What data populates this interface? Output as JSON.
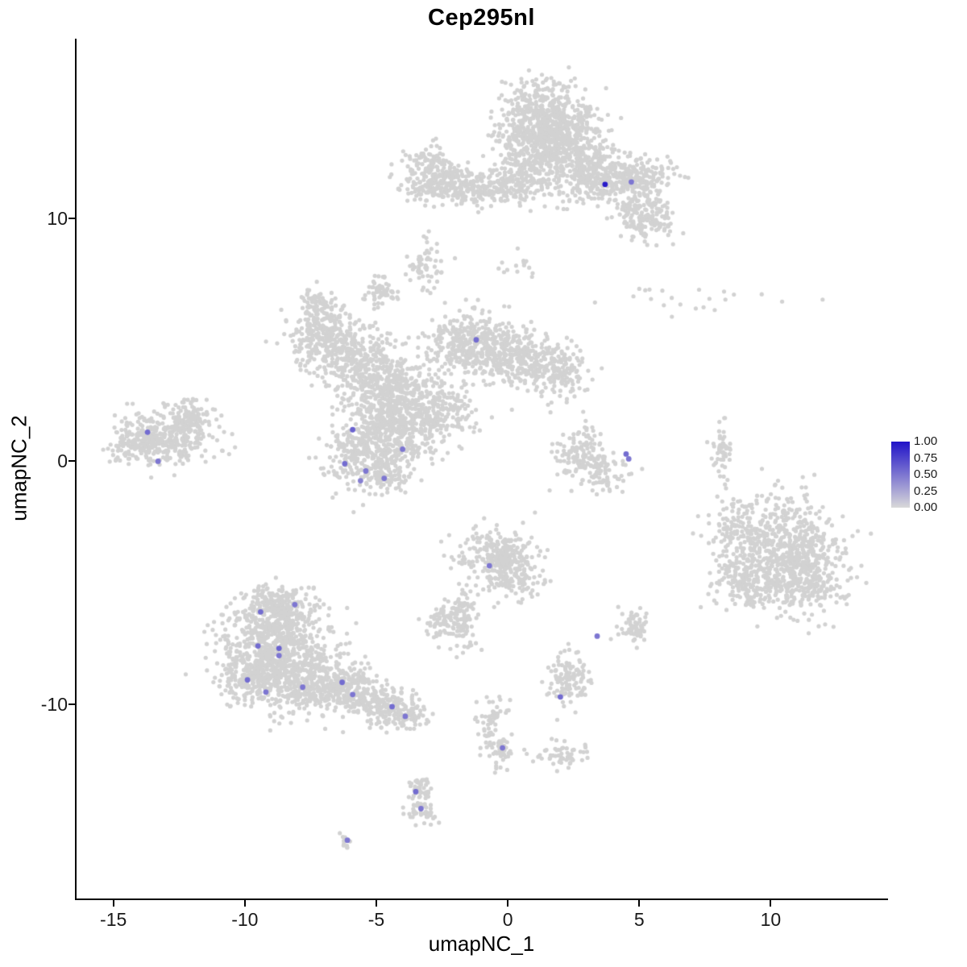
{
  "chart_data": {
    "type": "scatter",
    "title": "Cep295nl",
    "xlabel": "umapNC_1",
    "ylabel": "umapNC_2",
    "xlim": [
      -16.4,
      14.4
    ],
    "ylim": [
      -18.0,
      17.4
    ],
    "x_ticks": [
      -15,
      -10,
      -5,
      0,
      5,
      10
    ],
    "y_ticks": [
      10,
      0,
      -10
    ],
    "grid": false,
    "legend": {
      "position": "right",
      "ticks": [
        "1.00",
        "0.75",
        "0.50",
        "0.25",
        "0.00"
      ]
    },
    "colors": {
      "low": "#d9d9d9",
      "high": "#2012c8",
      "background_point": "#d2d2d2",
      "axis": "#000000"
    },
    "seed": 42,
    "point_radius_px": 2.6,
    "expressing_point_radius_px": 3.4,
    "background_clusters": [
      {
        "cx": 1.3,
        "cy": 14.2,
        "sx": 0.9,
        "sy": 0.7,
        "n": 480
      },
      {
        "cx": 2.2,
        "cy": 12.9,
        "sx": 0.8,
        "sy": 0.8,
        "n": 380
      },
      {
        "cx": 3.2,
        "cy": 11.7,
        "sx": 0.6,
        "sy": 0.55,
        "n": 220
      },
      {
        "cx": 4.8,
        "cy": 11.6,
        "sx": 0.7,
        "sy": 0.5,
        "n": 240
      },
      {
        "cx": 5.2,
        "cy": 10.2,
        "sx": 0.5,
        "sy": 0.55,
        "n": 180
      },
      {
        "cx": 0.6,
        "cy": 12.4,
        "sx": 0.6,
        "sy": 0.7,
        "n": 200
      },
      {
        "cx": -2.2,
        "cy": 11.3,
        "sx": 0.9,
        "sy": 0.35,
        "n": 200
      },
      {
        "cx": -2.9,
        "cy": 12.0,
        "sx": 0.5,
        "sy": 0.45,
        "n": 150
      },
      {
        "cx": -0.4,
        "cy": 11.2,
        "sx": 0.9,
        "sy": 0.4,
        "n": 160
      },
      {
        "cx": -3.2,
        "cy": 8.1,
        "sx": 0.35,
        "sy": 0.45,
        "n": 60
      },
      {
        "cx": 0.6,
        "cy": 8.2,
        "sx": 0.5,
        "sy": 0.4,
        "n": 15
      },
      {
        "cx": -7.0,
        "cy": 5.2,
        "sx": 0.7,
        "sy": 0.65,
        "n": 280
      },
      {
        "cx": -5.8,
        "cy": 4.3,
        "sx": 0.8,
        "sy": 0.6,
        "n": 240
      },
      {
        "cx": -4.6,
        "cy": 2.9,
        "sx": 0.9,
        "sy": 0.85,
        "n": 450
      },
      {
        "cx": -4.2,
        "cy": 1.3,
        "sx": 0.7,
        "sy": 0.8,
        "n": 320
      },
      {
        "cx": -2.6,
        "cy": 2.0,
        "sx": 0.8,
        "sy": 0.6,
        "n": 200
      },
      {
        "cx": -1.4,
        "cy": 4.8,
        "sx": 0.9,
        "sy": 0.65,
        "n": 360
      },
      {
        "cx": 0.4,
        "cy": 4.3,
        "sx": 0.9,
        "sy": 0.6,
        "n": 280
      },
      {
        "cx": 1.9,
        "cy": 3.7,
        "sx": 0.6,
        "sy": 0.5,
        "n": 140
      },
      {
        "cx": -4.8,
        "cy": 7.0,
        "sx": 0.3,
        "sy": 0.3,
        "n": 60
      },
      {
        "cx": -7.3,
        "cy": 6.4,
        "sx": 0.3,
        "sy": 0.4,
        "n": 50
      },
      {
        "cx": -13.0,
        "cy": 1.0,
        "sx": 0.9,
        "sy": 0.55,
        "n": 330
      },
      {
        "cx": -12.1,
        "cy": 1.8,
        "sx": 0.5,
        "sy": 0.4,
        "n": 110
      },
      {
        "cx": -14.2,
        "cy": 0.6,
        "sx": 0.5,
        "sy": 0.4,
        "n": 90
      },
      {
        "cx": -5.5,
        "cy": 0.3,
        "sx": 0.7,
        "sy": 0.7,
        "n": 260
      },
      {
        "cx": -4.6,
        "cy": -0.6,
        "sx": 0.45,
        "sy": 0.35,
        "n": 80
      },
      {
        "cx": 2.8,
        "cy": 0.2,
        "sx": 0.55,
        "sy": 0.6,
        "n": 150
      },
      {
        "cx": 3.7,
        "cy": -0.5,
        "sx": 0.45,
        "sy": 0.4,
        "n": 60
      },
      {
        "cx": 8.1,
        "cy": 0.4,
        "sx": 0.15,
        "sy": 0.6,
        "n": 55
      },
      {
        "cx": 7.3,
        "cy": 6.7,
        "sx": 1.4,
        "sy": 0.35,
        "n": 22
      },
      {
        "cx": 10.3,
        "cy": -3.4,
        "sx": 1.1,
        "sy": 1.0,
        "n": 550
      },
      {
        "cx": 11.2,
        "cy": -4.8,
        "sx": 0.9,
        "sy": 0.75,
        "n": 320
      },
      {
        "cx": 9.1,
        "cy": -5.0,
        "sx": 0.6,
        "sy": 0.55,
        "n": 140
      },
      {
        "cx": 8.5,
        "cy": -3.0,
        "sx": 0.5,
        "sy": 0.8,
        "n": 70
      },
      {
        "cx": -0.4,
        "cy": -3.8,
        "sx": 0.7,
        "sy": 0.6,
        "n": 260
      },
      {
        "cx": 0.3,
        "cy": -4.7,
        "sx": 0.5,
        "sy": 0.5,
        "n": 110
      },
      {
        "cx": -1.6,
        "cy": -6.4,
        "sx": 0.25,
        "sy": 0.7,
        "n": 70
      },
      {
        "cx": -2.4,
        "cy": -6.6,
        "sx": 0.4,
        "sy": 0.4,
        "n": 85
      },
      {
        "cx": -9.0,
        "cy": -7.5,
        "sx": 1.0,
        "sy": 0.9,
        "n": 520
      },
      {
        "cx": -8.0,
        "cy": -9.0,
        "sx": 0.9,
        "sy": 0.7,
        "n": 380
      },
      {
        "cx": -9.8,
        "cy": -8.8,
        "sx": 0.6,
        "sy": 0.6,
        "n": 190
      },
      {
        "cx": -8.5,
        "cy": -6.3,
        "sx": 0.6,
        "sy": 0.5,
        "n": 190
      },
      {
        "cx": -6.3,
        "cy": -9.3,
        "sx": 0.7,
        "sy": 0.5,
        "n": 240
      },
      {
        "cx": -4.9,
        "cy": -10.0,
        "sx": 0.6,
        "sy": 0.4,
        "n": 170
      },
      {
        "cx": -3.9,
        "cy": -10.4,
        "sx": 0.35,
        "sy": 0.3,
        "n": 80
      },
      {
        "cx": -9.0,
        "cy": -5.7,
        "sx": 0.45,
        "sy": 0.3,
        "n": 70
      },
      {
        "cx": 2.3,
        "cy": -8.9,
        "sx": 0.4,
        "sy": 0.6,
        "n": 120
      },
      {
        "cx": 4.8,
        "cy": -6.8,
        "sx": 0.3,
        "sy": 0.35,
        "n": 65
      },
      {
        "cx": -0.6,
        "cy": -10.6,
        "sx": 0.3,
        "sy": 0.5,
        "n": 55
      },
      {
        "cx": -0.3,
        "cy": -11.9,
        "sx": 0.3,
        "sy": 0.3,
        "n": 45
      },
      {
        "cx": 2.0,
        "cy": -12.1,
        "sx": 0.5,
        "sy": 0.25,
        "n": 55
      },
      {
        "cx": -3.4,
        "cy": -13.5,
        "sx": 0.25,
        "sy": 0.3,
        "n": 40
      },
      {
        "cx": -3.3,
        "cy": -14.4,
        "sx": 0.3,
        "sy": 0.35,
        "n": 50
      },
      {
        "cx": -6.1,
        "cy": -15.6,
        "sx": 0.15,
        "sy": 0.15,
        "n": 12
      }
    ],
    "expressing_points": [
      {
        "x": 3.7,
        "y": 11.4,
        "value": 0.95
      },
      {
        "x": 4.7,
        "y": 11.5,
        "value": 0.5
      },
      {
        "x": -1.2,
        "y": 5.0,
        "value": 0.55
      },
      {
        "x": -5.9,
        "y": 1.3,
        "value": 0.6
      },
      {
        "x": -4.0,
        "y": 0.5,
        "value": 0.5
      },
      {
        "x": -13.7,
        "y": 1.2,
        "value": 0.55
      },
      {
        "x": -13.3,
        "y": 0.0,
        "value": 0.5
      },
      {
        "x": -6.2,
        "y": -0.1,
        "value": 0.55
      },
      {
        "x": -5.4,
        "y": -0.4,
        "value": 0.5
      },
      {
        "x": -5.6,
        "y": -0.8,
        "value": 0.45
      },
      {
        "x": -4.7,
        "y": -0.7,
        "value": 0.5
      },
      {
        "x": 4.5,
        "y": 0.3,
        "value": 0.55
      },
      {
        "x": 4.6,
        "y": 0.1,
        "value": 0.5
      },
      {
        "x": -0.7,
        "y": -4.3,
        "value": 0.5
      },
      {
        "x": -9.4,
        "y": -6.2,
        "value": 0.55
      },
      {
        "x": -8.1,
        "y": -5.9,
        "value": 0.5
      },
      {
        "x": -9.5,
        "y": -7.6,
        "value": 0.55
      },
      {
        "x": -8.7,
        "y": -7.7,
        "value": 0.6
      },
      {
        "x": -8.7,
        "y": -8.0,
        "value": 0.5
      },
      {
        "x": -9.9,
        "y": -9.0,
        "value": 0.55
      },
      {
        "x": -9.2,
        "y": -9.5,
        "value": 0.5
      },
      {
        "x": -7.8,
        "y": -9.3,
        "value": 0.5
      },
      {
        "x": -6.3,
        "y": -9.1,
        "value": 0.55
      },
      {
        "x": -5.9,
        "y": -9.6,
        "value": 0.5
      },
      {
        "x": -4.4,
        "y": -10.1,
        "value": 0.55
      },
      {
        "x": -3.9,
        "y": -10.5,
        "value": 0.5
      },
      {
        "x": 3.4,
        "y": -7.2,
        "value": 0.5
      },
      {
        "x": 2.0,
        "y": -9.7,
        "value": 0.55
      },
      {
        "x": -0.2,
        "y": -11.8,
        "value": 0.5
      },
      {
        "x": -3.5,
        "y": -13.6,
        "value": 0.55
      },
      {
        "x": -3.3,
        "y": -14.3,
        "value": 0.5
      },
      {
        "x": -6.1,
        "y": -15.6,
        "value": 0.5
      }
    ]
  }
}
